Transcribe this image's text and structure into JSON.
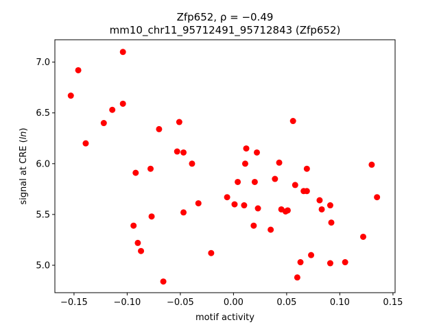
{
  "chart_data": {
    "type": "scatter",
    "title_line1": "Zfp652, ρ = −0.49",
    "title_line2": "mm10_chr11_95712491_95712843 (Zfp652)",
    "xlabel": "motif activity",
    "ylabel": "signal at CRE (ln)",
    "xlim": [
      -0.168,
      0.152
    ],
    "ylim": [
      4.73,
      7.22
    ],
    "xticks": [
      -0.15,
      -0.1,
      -0.05,
      0.0,
      0.05,
      0.1,
      0.15
    ],
    "xtick_labels": [
      "−0.15",
      "−0.10",
      "−0.05",
      "0.00",
      "0.05",
      "0.10",
      "0.15"
    ],
    "yticks": [
      5.0,
      5.5,
      6.0,
      6.5,
      7.0
    ],
    "ytick_labels": [
      "5.0",
      "5.5",
      "6.0",
      "6.5",
      "7.0"
    ],
    "grid": false,
    "marker_color": "#ff0000",
    "points": [
      {
        "x": -0.153,
        "y": 6.67
      },
      {
        "x": -0.146,
        "y": 6.92
      },
      {
        "x": -0.139,
        "y": 6.2
      },
      {
        "x": -0.122,
        "y": 6.4
      },
      {
        "x": -0.114,
        "y": 6.53
      },
      {
        "x": -0.104,
        "y": 7.1
      },
      {
        "x": -0.104,
        "y": 6.59
      },
      {
        "x": -0.094,
        "y": 5.39
      },
      {
        "x": -0.092,
        "y": 5.91
      },
      {
        "x": -0.09,
        "y": 5.22
      },
      {
        "x": -0.087,
        "y": 5.14
      },
      {
        "x": -0.078,
        "y": 5.95
      },
      {
        "x": -0.077,
        "y": 5.48
      },
      {
        "x": -0.07,
        "y": 6.34
      },
      {
        "x": -0.066,
        "y": 4.84
      },
      {
        "x": -0.053,
        "y": 6.12
      },
      {
        "x": -0.051,
        "y": 6.41
      },
      {
        "x": -0.047,
        "y": 6.11
      },
      {
        "x": -0.047,
        "y": 5.52
      },
      {
        "x": -0.039,
        "y": 6.0
      },
      {
        "x": -0.033,
        "y": 5.61
      },
      {
        "x": -0.021,
        "y": 5.12
      },
      {
        "x": -0.006,
        "y": 5.67
      },
      {
        "x": 0.001,
        "y": 5.6
      },
      {
        "x": 0.004,
        "y": 5.82
      },
      {
        "x": 0.01,
        "y": 5.59
      },
      {
        "x": 0.011,
        "y": 6.0
      },
      {
        "x": 0.012,
        "y": 6.15
      },
      {
        "x": 0.019,
        "y": 5.39
      },
      {
        "x": 0.02,
        "y": 5.82
      },
      {
        "x": 0.022,
        "y": 6.11
      },
      {
        "x": 0.023,
        "y": 5.56
      },
      {
        "x": 0.035,
        "y": 5.35
      },
      {
        "x": 0.039,
        "y": 5.85
      },
      {
        "x": 0.043,
        "y": 6.01
      },
      {
        "x": 0.045,
        "y": 5.55
      },
      {
        "x": 0.049,
        "y": 5.53
      },
      {
        "x": 0.051,
        "y": 5.54
      },
      {
        "x": 0.056,
        "y": 6.42
      },
      {
        "x": 0.058,
        "y": 5.79
      },
      {
        "x": 0.06,
        "y": 4.88
      },
      {
        "x": 0.063,
        "y": 5.03
      },
      {
        "x": 0.066,
        "y": 5.73
      },
      {
        "x": 0.069,
        "y": 5.73
      },
      {
        "x": 0.069,
        "y": 5.95
      },
      {
        "x": 0.073,
        "y": 5.1
      },
      {
        "x": 0.081,
        "y": 5.64
      },
      {
        "x": 0.083,
        "y": 5.55
      },
      {
        "x": 0.091,
        "y": 5.59
      },
      {
        "x": 0.092,
        "y": 5.42
      },
      {
        "x": 0.091,
        "y": 5.02
      },
      {
        "x": 0.105,
        "y": 5.03
      },
      {
        "x": 0.122,
        "y": 5.28
      },
      {
        "x": 0.13,
        "y": 5.99
      },
      {
        "x": 0.135,
        "y": 5.67
      }
    ]
  }
}
